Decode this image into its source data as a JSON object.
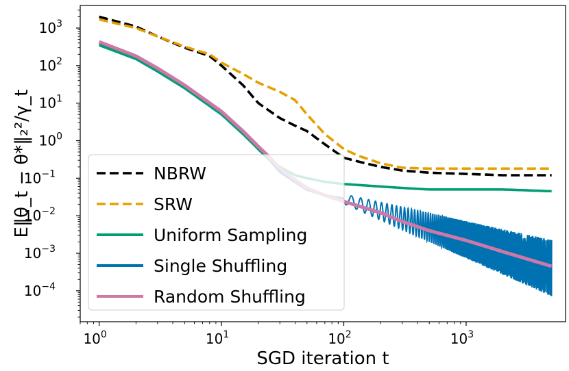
{
  "chart_data": {
    "type": "line",
    "xscale": "log",
    "yscale": "log",
    "xlim": [
      0.7,
      6500
    ],
    "ylim": [
      1.5e-05,
      4000
    ],
    "xlabel": "SGD iteration t",
    "ylabel": "E‖θ_t − θ*‖₂²/γ_t",
    "legend_position": "lower-left",
    "xticks": [
      {
        "value": 1,
        "base": "10",
        "exp": "0"
      },
      {
        "value": 10,
        "base": "10",
        "exp": "1"
      },
      {
        "value": 100,
        "base": "10",
        "exp": "2"
      },
      {
        "value": 1000,
        "base": "10",
        "exp": "3"
      }
    ],
    "yticks": [
      {
        "value": 0.0001,
        "base": "10",
        "exp": "−4"
      },
      {
        "value": 0.001,
        "base": "10",
        "exp": "−3"
      },
      {
        "value": 0.01,
        "base": "10",
        "exp": "−2"
      },
      {
        "value": 0.1,
        "base": "10",
        "exp": "−1"
      },
      {
        "value": 1,
        "base": "10",
        "exp": "0"
      },
      {
        "value": 10,
        "base": "10",
        "exp": "1"
      },
      {
        "value": 100,
        "base": "10",
        "exp": "2"
      },
      {
        "value": 1000,
        "base": "10",
        "exp": "3"
      }
    ],
    "series": [
      {
        "name": "NBRW",
        "color": "#000000",
        "dash": true,
        "x": [
          1,
          2,
          3,
          5,
          8,
          10,
          15,
          20,
          30,
          40,
          50,
          70,
          100,
          130,
          200,
          300,
          500,
          1000,
          2000,
          3000,
          5000
        ],
        "y": [
          2000,
          1100,
          600,
          300,
          180,
          100,
          30,
          10,
          4,
          2.5,
          1.8,
          0.8,
          0.35,
          0.28,
          0.2,
          0.16,
          0.14,
          0.13,
          0.12,
          0.12,
          0.12
        ]
      },
      {
        "name": "SRW",
        "color": "#E69F00",
        "dash": true,
        "x": [
          1,
          2,
          3,
          5,
          8,
          10,
          15,
          20,
          30,
          40,
          50,
          70,
          100,
          130,
          200,
          300,
          500,
          1000,
          2000,
          3000,
          5000
        ],
        "y": [
          1700,
          1000,
          600,
          320,
          200,
          120,
          60,
          35,
          20,
          12,
          5,
          1.5,
          0.6,
          0.4,
          0.25,
          0.19,
          0.18,
          0.18,
          0.18,
          0.18,
          0.18
        ]
      },
      {
        "name": "Uniform Sampling",
        "color": "#009E73",
        "dash": false,
        "x": [
          1,
          2,
          3,
          5,
          10,
          15,
          20,
          25,
          30,
          40,
          50,
          70,
          100,
          200,
          300,
          500,
          1000,
          2000,
          5000
        ],
        "y": [
          350,
          150,
          70,
          25,
          5,
          1.5,
          0.6,
          0.3,
          0.2,
          0.12,
          0.1,
          0.08,
          0.07,
          0.06,
          0.055,
          0.05,
          0.05,
          0.05,
          0.045
        ]
      },
      {
        "name": "Single Shuffling",
        "color": "#0072B2",
        "dash": false,
        "x": [
          1,
          2,
          3,
          5,
          10,
          15,
          20,
          25,
          30,
          40,
          50,
          70,
          100
        ],
        "y": [
          400,
          170,
          80,
          28,
          5.5,
          1.6,
          0.6,
          0.3,
          0.15,
          0.08,
          0.05,
          0.035,
          0.028
        ],
        "oscillation": {
          "center_start": [
            100,
            0.028
          ],
          "center_end": [
            5000,
            0.0004
          ],
          "spread_start": 1.8,
          "spread_end": 32
        }
      },
      {
        "name": "Random Shuffling",
        "color": "#CC79A7",
        "dash": false,
        "x": [
          1,
          2,
          3,
          5,
          10,
          15,
          20,
          25,
          30,
          40,
          50,
          70,
          100,
          200,
          300,
          500,
          1000,
          2000,
          5000
        ],
        "y": [
          430,
          180,
          85,
          30,
          6,
          1.8,
          0.7,
          0.35,
          0.18,
          0.09,
          0.055,
          0.035,
          0.024,
          0.012,
          0.007,
          0.004,
          0.0022,
          0.0011,
          0.00045
        ]
      }
    ]
  }
}
